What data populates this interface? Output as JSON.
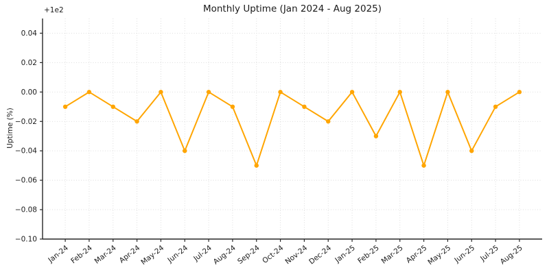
{
  "chart_data": {
    "type": "line",
    "title": "Monthly Uptime (Jan 2024 - Aug 2025)",
    "xlabel": "",
    "ylabel": "Uptime (%)",
    "offset_label": "+1e2",
    "categories": [
      "Jan-24",
      "Feb-24",
      "Mar-24",
      "Apr-24",
      "May-24",
      "Jun-24",
      "Jul-24",
      "Aug-24",
      "Sep-24",
      "Oct-24",
      "Nov-24",
      "Dec-24",
      "Jan-25",
      "Feb-25",
      "Mar-25",
      "Apr-25",
      "May-25",
      "Jun-25",
      "Jul-25",
      "Aug-25"
    ],
    "values": [
      99.99,
      100.0,
      99.99,
      99.98,
      100.0,
      99.96,
      100.0,
      99.99,
      99.95,
      100.0,
      99.99,
      99.98,
      100.0,
      99.97,
      100.0,
      99.95,
      100.0,
      99.96,
      99.99,
      100.0
    ],
    "ylim": [
      99.9,
      100.05
    ],
    "yticks": [
      99.9,
      99.92,
      99.94,
      99.96,
      99.98,
      100.0,
      100.02,
      100.04
    ],
    "ytick_display": [
      "−0.10",
      "−0.08",
      "−0.06",
      "−0.04",
      "−0.02",
      "0.00",
      "0.02",
      "0.04"
    ],
    "grid": true,
    "legend": null,
    "colors": {
      "line": "#ffa500",
      "marker": "#ffa500",
      "grid": "#d9d9d9",
      "spine": "#262626",
      "text": "#1a1a1a"
    }
  }
}
